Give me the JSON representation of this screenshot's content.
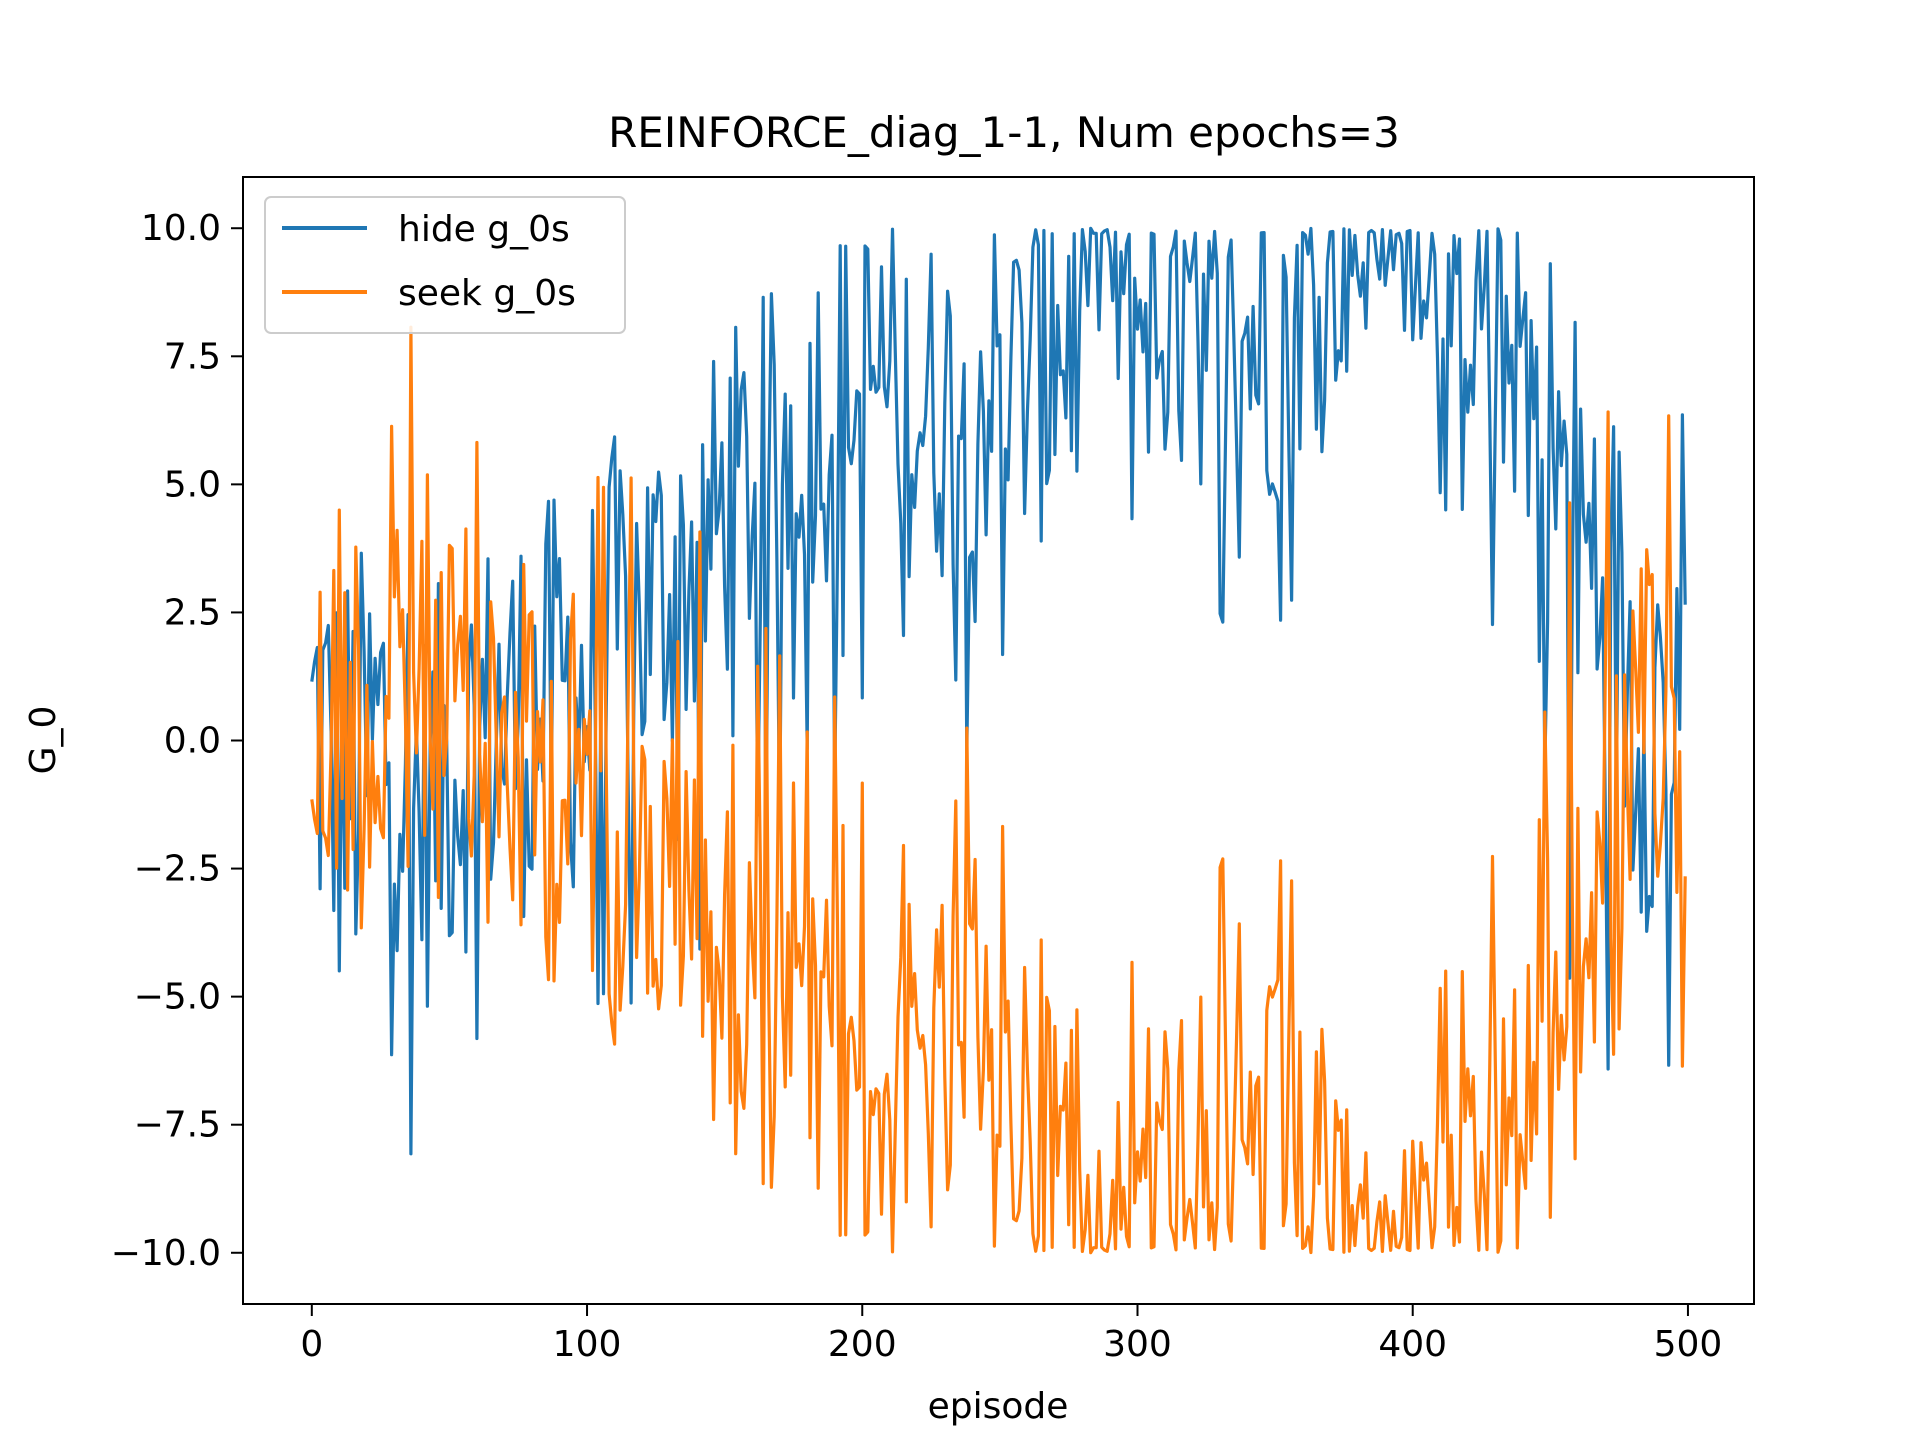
{
  "chart_data": {
    "type": "line",
    "title": "REINFORCE_diag_1-1, Num epochs=3",
    "xlabel": "episode",
    "ylabel": "G_0",
    "xlim": [
      -25,
      524
    ],
    "ylim": [
      -11,
      11
    ],
    "xticks": [
      0,
      100,
      200,
      300,
      400,
      500
    ],
    "xtick_labels": [
      "0",
      "100",
      "200",
      "300",
      "400",
      "500"
    ],
    "yticks": [
      -10,
      -7.5,
      -5,
      -2.5,
      0,
      2.5,
      5,
      7.5,
      10
    ],
    "ytick_labels": [
      "−10.0",
      "−7.5",
      "−5.0",
      "−2.5",
      "0.0",
      "2.5",
      "5.0",
      "7.5",
      "10.0"
    ],
    "grid": false,
    "legend_position": "top-left",
    "colors": {
      "hide": "#1f77b4",
      "seek": "#ff7f0e"
    },
    "episodes_per_series": 500,
    "series": [
      {
        "name": "hide g_0s",
        "color": "#1f77b4",
        "keyframes_x": [
          0,
          10,
          20,
          30,
          40,
          50,
          60,
          70,
          80,
          90,
          100,
          110,
          120,
          130,
          140,
          150,
          160,
          170,
          180,
          190,
          200,
          210,
          220,
          230,
          240,
          250,
          260,
          270,
          280,
          290,
          300,
          310,
          320,
          330,
          340,
          350,
          360,
          370,
          380,
          390,
          400,
          410,
          420,
          430,
          440,
          450,
          460,
          470,
          480,
          490,
          499
        ],
        "keyframes_y": [
          0.5,
          -1.0,
          -0.5,
          0.5,
          -1.5,
          -0.5,
          0.0,
          0.5,
          0.5,
          1.0,
          0.8,
          2.0,
          2.5,
          3.0,
          3.5,
          4.5,
          5.0,
          5.5,
          6.5,
          6.5,
          7.0,
          7.0,
          6.5,
          6.5,
          7.0,
          7.0,
          7.0,
          7.5,
          8.5,
          9.0,
          8.5,
          8.0,
          8.0,
          7.5,
          8.0,
          7.5,
          8.5,
          9.0,
          9.5,
          9.8,
          9.8,
          9.0,
          8.5,
          8.0,
          7.5,
          6.0,
          4.0,
          3.0,
          1.0,
          0.5,
          2.6
        ],
        "noise": [
          4.5,
          4.5,
          4.5,
          4.5,
          4.0,
          4.0,
          4.0,
          4.0,
          4.0,
          4.0,
          4.0,
          4.0,
          4.0,
          3.5,
          3.5,
          3.5,
          3.5,
          3.5,
          3.5,
          3.5,
          3.5,
          3.5,
          3.5,
          3.5,
          3.5,
          3.5,
          3.5,
          3.5,
          3.0,
          2.5,
          3.0,
          3.0,
          3.0,
          3.0,
          3.0,
          3.0,
          3.0,
          2.5,
          2.0,
          1.0,
          1.0,
          2.0,
          2.5,
          3.0,
          3.0,
          4.0,
          4.5,
          4.5,
          4.5,
          4.5,
          4.5
        ]
      },
      {
        "name": "seek g_0s",
        "color": "#ff7f0e",
        "mirror_of": "hide g_0s"
      }
    ]
  }
}
